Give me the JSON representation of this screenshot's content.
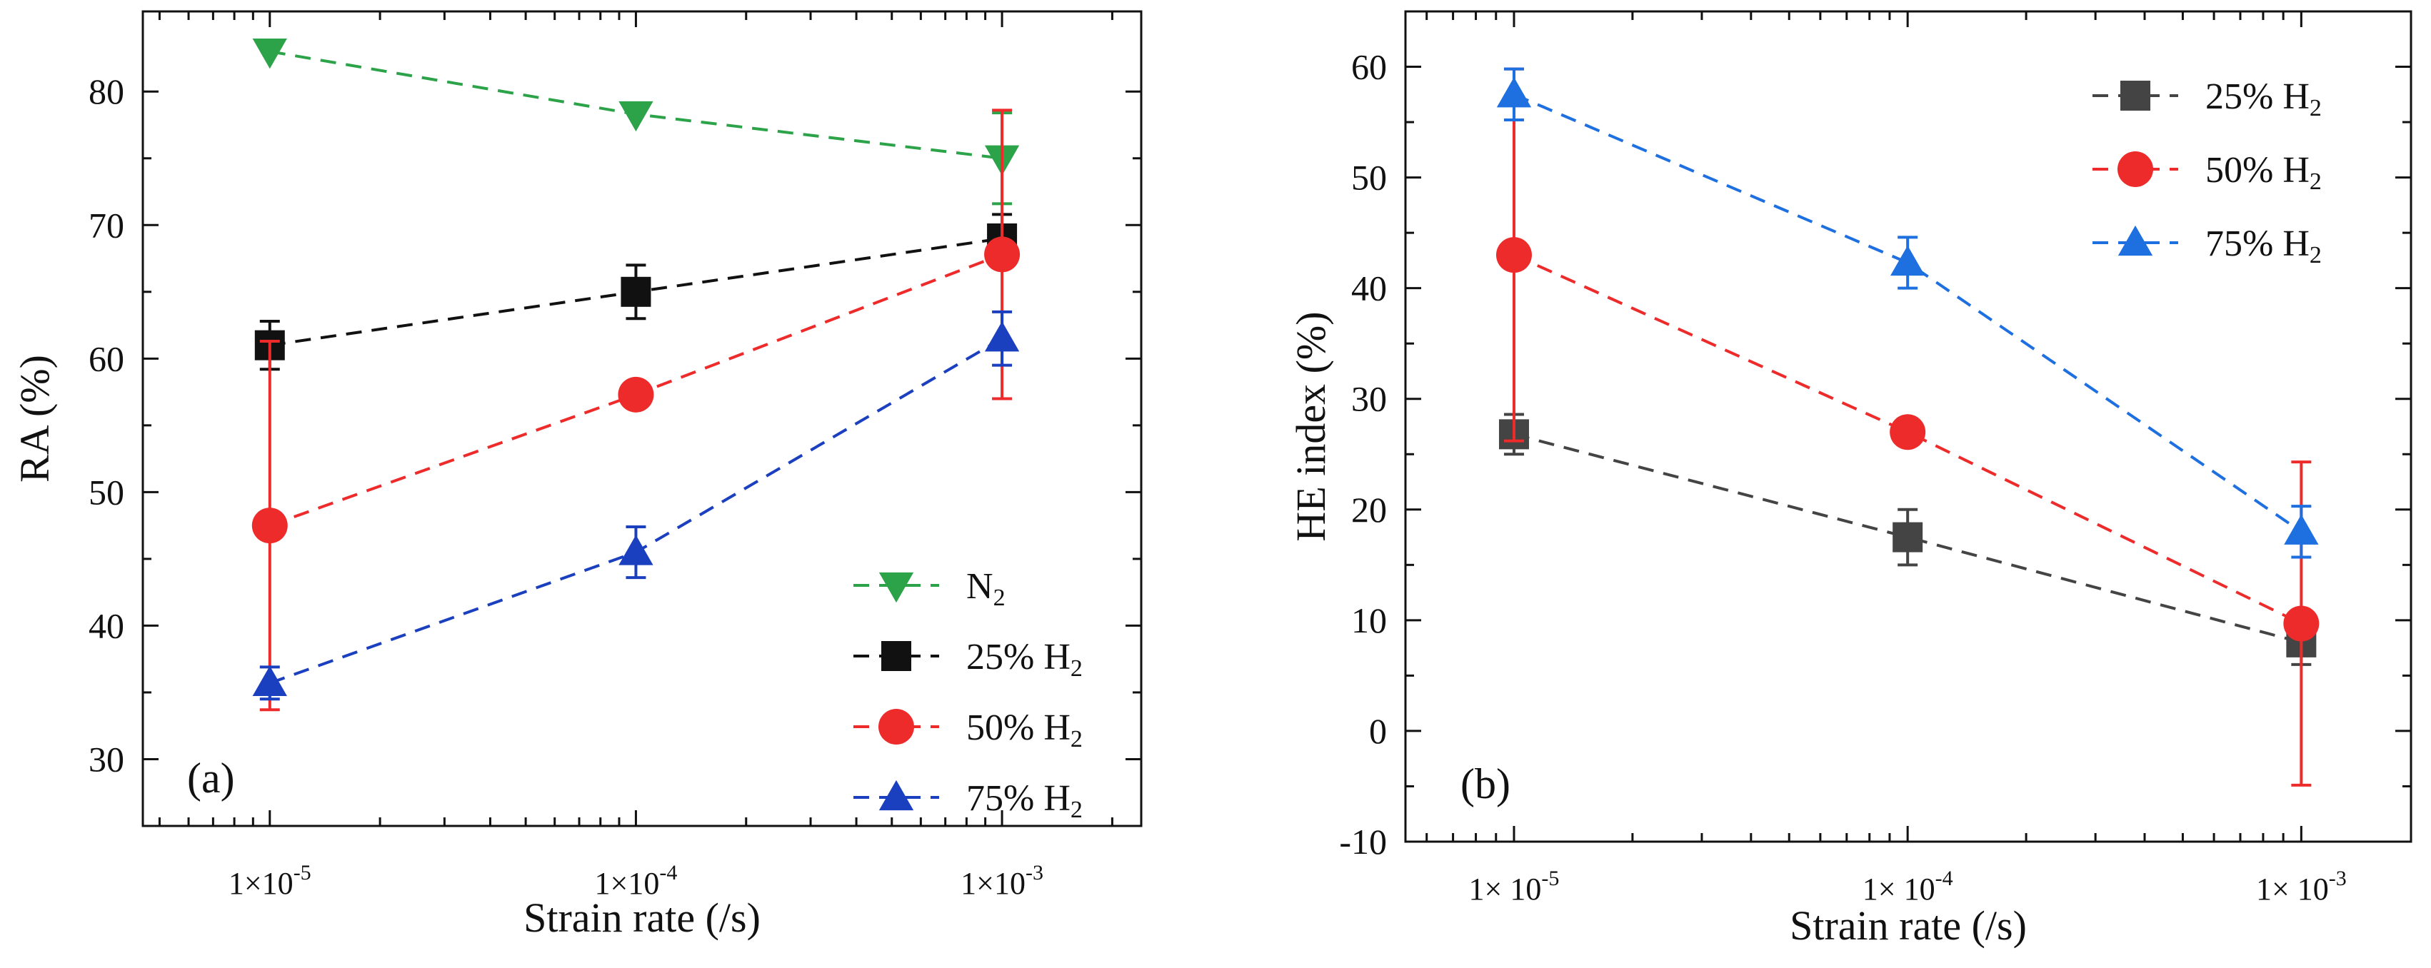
{
  "chart_data": [
    {
      "type": "line",
      "panel_label": "(a)",
      "xlabel": "Strain rate (/s)",
      "ylabel": "RA (%)",
      "x_scale": "log",
      "x": [
        1e-05,
        0.0001,
        0.001
      ],
      "x_tick_labels": [
        {
          "base": "1×10",
          "exp": "-5"
        },
        {
          "base": "1×10",
          "exp": "-4"
        },
        {
          "base": "1×10",
          "exp": "-3"
        }
      ],
      "xlim": [
        4.5e-06,
        0.0024
      ],
      "ylim": [
        25,
        86
      ],
      "y_ticks": [
        30,
        40,
        50,
        60,
        70,
        80
      ],
      "legend_position": "bottom-right",
      "series": [
        {
          "name": "N",
          "name_sub": "2",
          "marker": "triangle-down",
          "color": "#2ca349",
          "values": [
            83.0,
            78.3,
            75.0
          ],
          "errors": [
            null,
            null,
            3.4
          ]
        },
        {
          "name": "25% H",
          "name_sub": "2",
          "marker": "square",
          "color": "#111111",
          "values": [
            61.0,
            65.0,
            69.0
          ],
          "errors": [
            1.8,
            2.0,
            1.8
          ]
        },
        {
          "name": "50% H",
          "name_sub": "2",
          "marker": "circle",
          "color": "#ee2b2b",
          "values": [
            47.5,
            57.3,
            67.8
          ],
          "errors": [
            13.8,
            0.7,
            10.8
          ]
        },
        {
          "name": "75% H",
          "name_sub": "2",
          "marker": "triangle-up",
          "color": "#1a3fbf",
          "values": [
            35.7,
            45.5,
            61.5
          ],
          "errors": [
            1.2,
            1.9,
            2.0
          ]
        }
      ]
    },
    {
      "type": "line",
      "panel_label": "(b)",
      "xlabel": "Strain rate (/s)",
      "ylabel": "HE index (%)",
      "x_scale": "log",
      "x": [
        1e-05,
        0.0001,
        0.001
      ],
      "x_tick_labels": [
        {
          "base": "1× 10",
          "exp": "-5"
        },
        {
          "base": "1× 10",
          "exp": "-4"
        },
        {
          "base": "1× 10",
          "exp": "-3"
        }
      ],
      "xlim": [
        5.3e-06,
        0.0019
      ],
      "ylim": [
        -10,
        65
      ],
      "y_ticks": [
        -10,
        0,
        10,
        20,
        30,
        40,
        50,
        60
      ],
      "legend_position": "top-right",
      "series": [
        {
          "name": "25% H",
          "name_sub": "2",
          "marker": "square",
          "color": "#444444",
          "values": [
            26.8,
            17.5,
            8.0
          ],
          "errors": [
            1.8,
            2.5,
            2.0
          ]
        },
        {
          "name": "50% H",
          "name_sub": "2",
          "marker": "circle",
          "color": "#ee2b2b",
          "values": [
            43.0,
            27.0,
            9.7
          ],
          "errors": [
            16.8,
            0.8,
            14.6
          ]
        },
        {
          "name": "75% H",
          "name_sub": "2",
          "marker": "triangle-up",
          "color": "#1e6fe0",
          "values": [
            57.5,
            42.3,
            18.0
          ],
          "errors": [
            2.3,
            2.3,
            2.3
          ]
        }
      ]
    }
  ]
}
